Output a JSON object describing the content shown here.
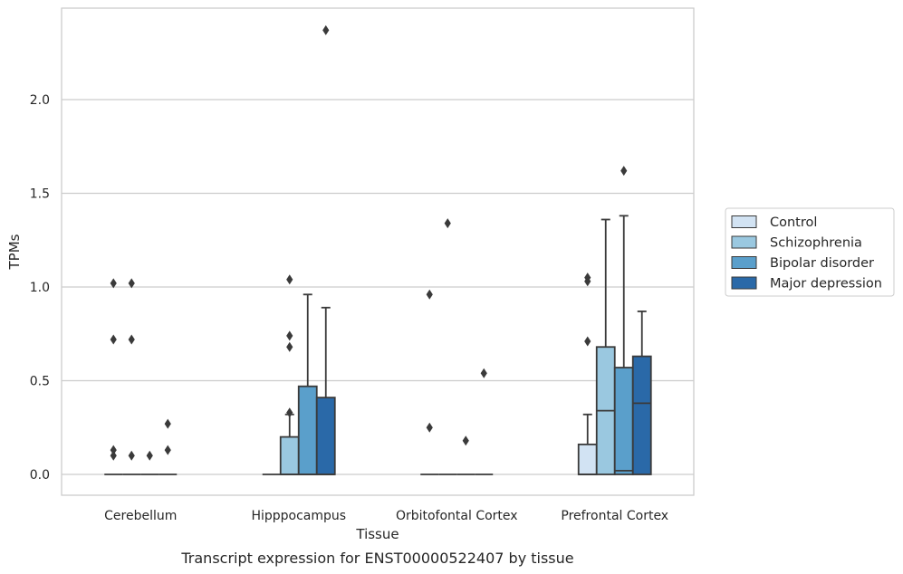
{
  "chart_data": {
    "type": "box",
    "title": "",
    "caption": "Transcript expression for ENST00000522407 by tissue",
    "xlabel": "Tissue",
    "ylabel": "TPMs",
    "ylim": [
      -0.12,
      2.48
    ],
    "yticks": [
      "0.0",
      "0.5",
      "1.0",
      "1.5",
      "2.0"
    ],
    "ytick_values": [
      0.0,
      0.5,
      1.0,
      1.5,
      2.0
    ],
    "grid": "horizontal",
    "legend_position": "right",
    "categories": [
      "Cerebellum",
      "Hipppocampus",
      "Orbitofontal Cortex",
      "Prefrontal Cortex"
    ],
    "series": [
      {
        "name": "Control",
        "color": "#d2e3f3",
        "boxes": [
          {
            "q1": 0,
            "median": 0,
            "q3": 0,
            "whisker_low": 0,
            "whisker_high": 0,
            "outliers": [
              0.1,
              0.13,
              0.72,
              1.02
            ]
          },
          {
            "q1": 0,
            "median": 0,
            "q3": 0,
            "whisker_low": 0,
            "whisker_high": 0,
            "outliers": []
          },
          {
            "q1": 0,
            "median": 0,
            "q3": 0,
            "whisker_low": 0,
            "whisker_high": 0,
            "outliers": [
              0.25,
              0.96
            ]
          },
          {
            "q1": 0,
            "median": 0,
            "q3": 0.16,
            "whisker_low": 0,
            "whisker_high": 0.32,
            "outliers": [
              0.71,
              1.03,
              1.05
            ]
          }
        ]
      },
      {
        "name": "Schizophrenia",
        "color": "#9ac8e0",
        "boxes": [
          {
            "q1": 0,
            "median": 0,
            "q3": 0,
            "whisker_low": 0,
            "whisker_high": 0,
            "outliers": [
              0.1,
              0.72,
              1.02
            ]
          },
          {
            "q1": 0,
            "median": 0,
            "q3": 0.2,
            "whisker_low": 0,
            "whisker_high": 0.32,
            "outliers": [
              0.33,
              0.68,
              0.74,
              1.04
            ]
          },
          {
            "q1": 0,
            "median": 0,
            "q3": 0,
            "whisker_low": 0,
            "whisker_high": 0,
            "outliers": [
              1.34
            ]
          },
          {
            "q1": 0,
            "median": 0.34,
            "q3": 0.68,
            "whisker_low": 0,
            "whisker_high": 1.36,
            "outliers": []
          }
        ]
      },
      {
        "name": "Bipolar disorder",
        "color": "#5a9fcb",
        "boxes": [
          {
            "q1": 0,
            "median": 0,
            "q3": 0,
            "whisker_low": 0,
            "whisker_high": 0,
            "outliers": [
              0.1
            ]
          },
          {
            "q1": 0,
            "median": 0,
            "q3": 0.47,
            "whisker_low": 0,
            "whisker_high": 0.96,
            "outliers": []
          },
          {
            "q1": 0,
            "median": 0,
            "q3": 0,
            "whisker_low": 0,
            "whisker_high": 0,
            "outliers": [
              0.18
            ]
          },
          {
            "q1": 0,
            "median": 0.02,
            "q3": 0.57,
            "whisker_low": 0,
            "whisker_high": 1.38,
            "outliers": [
              1.62
            ]
          }
        ]
      },
      {
        "name": "Major depression",
        "color": "#2a69a8",
        "boxes": [
          {
            "q1": 0,
            "median": 0,
            "q3": 0,
            "whisker_low": 0,
            "whisker_high": 0,
            "outliers": [
              0.13,
              0.27
            ]
          },
          {
            "q1": 0,
            "median": 0,
            "q3": 0.41,
            "whisker_low": 0,
            "whisker_high": 0.89,
            "outliers": [
              2.37
            ]
          },
          {
            "q1": 0,
            "median": 0,
            "q3": 0,
            "whisker_low": 0,
            "whisker_high": 0,
            "outliers": [
              0.54
            ]
          },
          {
            "q1": 0,
            "median": 0.38,
            "q3": 0.63,
            "whisker_low": 0,
            "whisker_high": 0.87,
            "outliers": []
          }
        ]
      }
    ]
  }
}
